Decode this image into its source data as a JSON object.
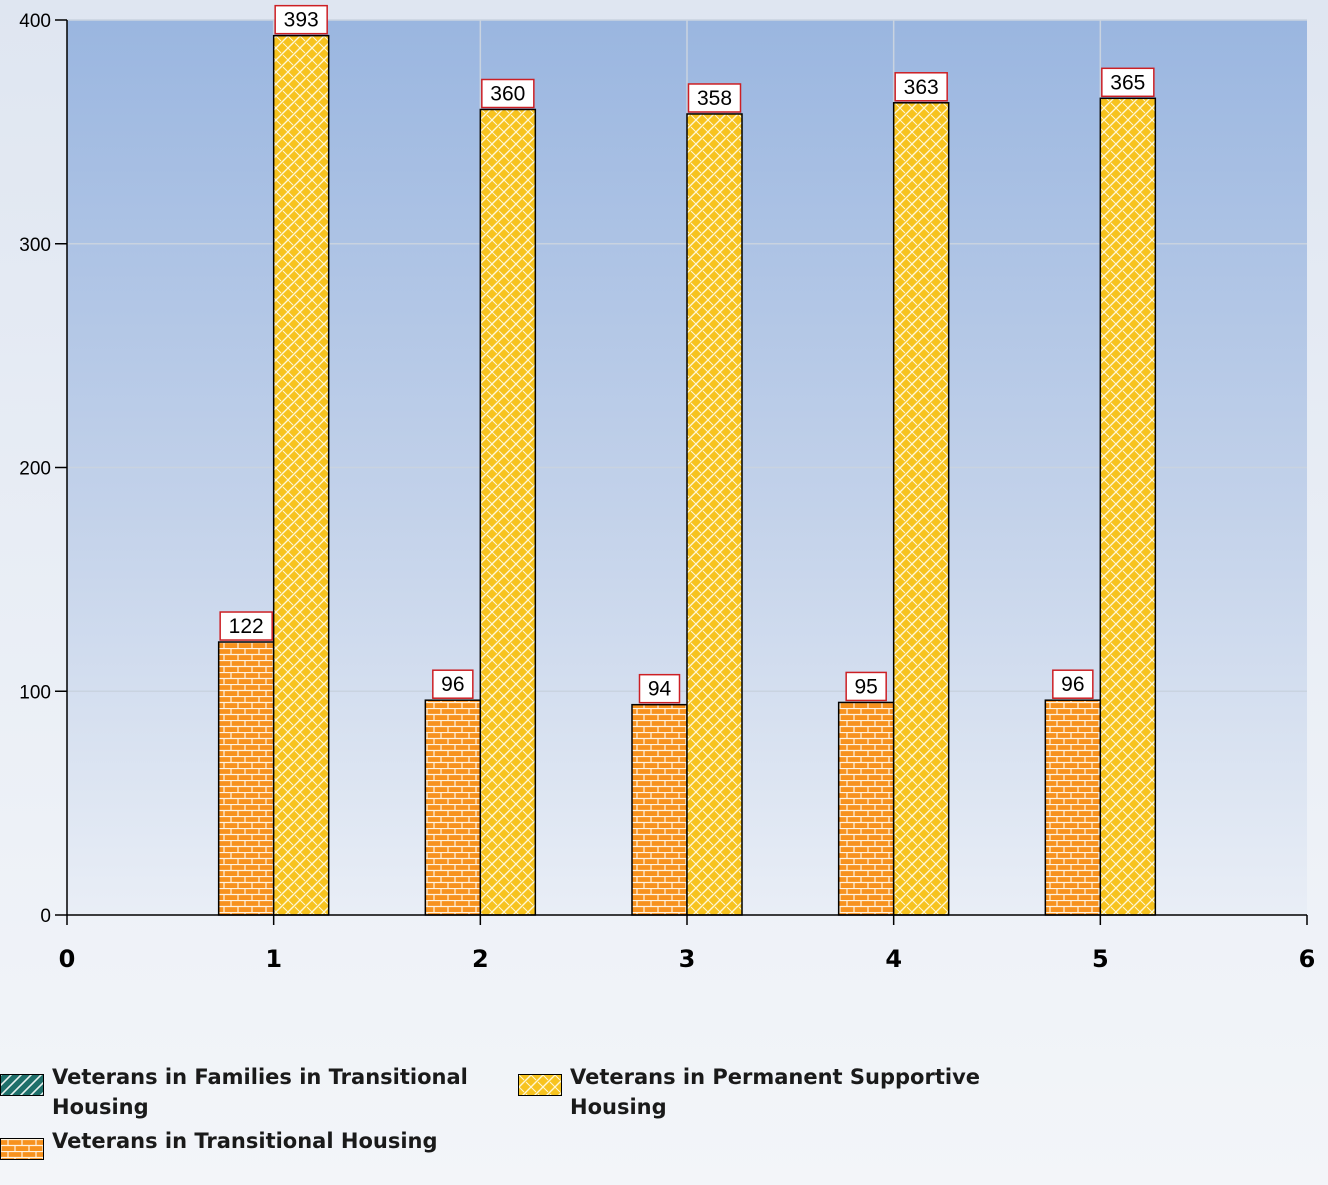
{
  "chart_data": {
    "type": "bar",
    "x": [
      1,
      2,
      3,
      4,
      5
    ],
    "xlim": [
      0,
      6
    ],
    "ylim": [
      0,
      400
    ],
    "x_ticks": [
      "0",
      "1",
      "2",
      "3",
      "4",
      "5",
      "6"
    ],
    "y_ticks": [
      "0",
      "100",
      "200",
      "300",
      "400"
    ],
    "grid": true,
    "legend_position": "bottom-left",
    "series": [
      {
        "name": "Veterans in Families in Transitional Housing",
        "color": "#1e6f6a",
        "pattern": "diagonal-hatch",
        "values": [
          null,
          null,
          null,
          null,
          null
        ]
      },
      {
        "name": "Veterans in Transitional Housing",
        "color": "#f7921e",
        "pattern": "brick",
        "values": [
          122,
          96,
          94,
          95,
          96
        ]
      },
      {
        "name": "Veterans in Permanent Supportive Housing",
        "color": "#f7c31f",
        "pattern": "weave",
        "values": [
          393,
          360,
          358,
          363,
          365
        ]
      }
    ],
    "data_labels": {
      "series_1": [
        "122",
        "96",
        "94",
        "95",
        "96"
      ],
      "series_2": [
        "393",
        "360",
        "358",
        "363",
        "365"
      ]
    }
  },
  "legend": {
    "items": [
      {
        "label": "Veterans in Families in Transitional Housing",
        "icon": "diagonal-hatch-swatch"
      },
      {
        "label": "Veterans in Transitional Housing",
        "icon": "brick-swatch"
      },
      {
        "label": "Veterans in Permanent Supportive Housing",
        "icon": "weave-swatch"
      }
    ]
  }
}
